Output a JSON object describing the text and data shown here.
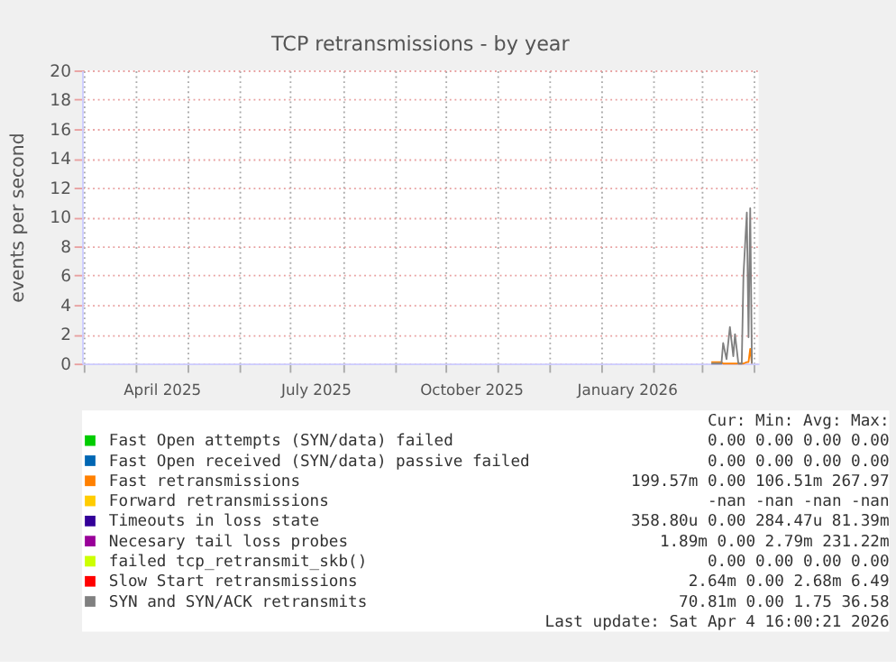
{
  "chart_data": {
    "type": "line",
    "title": "TCP retransmissions - by year",
    "ylabel": "events per second",
    "x": [
      "2026-03-07",
      "2026-03-08",
      "2026-03-13",
      "2026-03-14",
      "2026-03-16",
      "2026-03-18",
      "2026-03-20",
      "2026-03-21",
      "2026-03-23",
      "2026-03-25",
      "2026-03-26",
      "2026-03-28",
      "2026-03-29",
      "2026-03-30",
      "2026-03-31"
    ],
    "series": [
      {
        "name": "Fast Open attempts (SYN/data) failed",
        "color": "#00cc00",
        "values": [
          null,
          null,
          null,
          null,
          null,
          null,
          null,
          null,
          null,
          null,
          null,
          null,
          null,
          null,
          null
        ]
      },
      {
        "name": "Fast Open received (SYN/data) passive failed",
        "color": "#0066b3",
        "values": [
          null,
          null,
          null,
          null,
          null,
          null,
          null,
          null,
          null,
          null,
          null,
          null,
          null,
          null,
          null
        ]
      },
      {
        "name": "Fast retransmissions",
        "color": "#ff8000",
        "values": [
          0.1,
          0.1,
          0.1,
          0,
          0,
          0,
          0,
          0,
          0,
          0,
          0,
          0.1,
          0.1,
          1.0,
          0
        ]
      },
      {
        "name": "Forward retransmissions",
        "color": "#ffcc00",
        "values": [
          null,
          null,
          null,
          null,
          null,
          null,
          null,
          null,
          null,
          null,
          null,
          null,
          null,
          null,
          null
        ]
      },
      {
        "name": "Timeouts in loss state",
        "color": "#330099",
        "values": [
          null,
          null,
          null,
          null,
          null,
          null,
          null,
          null,
          null,
          null,
          null,
          null,
          null,
          null,
          null
        ]
      },
      {
        "name": "Necesary tail loss probes",
        "color": "#990099",
        "values": [
          null,
          null,
          null,
          null,
          null,
          null,
          null,
          null,
          null,
          null,
          null,
          null,
          null,
          null,
          null
        ]
      },
      {
        "name": "failed tcp_retransmit_skb()",
        "color": "#ccff00",
        "values": [
          null,
          null,
          null,
          null,
          null,
          null,
          null,
          null,
          null,
          null,
          null,
          null,
          null,
          null,
          null
        ]
      },
      {
        "name": "Slow Start retransmissions",
        "color": "#ff0000",
        "values": [
          null,
          null,
          null,
          null,
          null,
          null,
          null,
          null,
          null,
          null,
          null,
          null,
          null,
          null,
          null
        ]
      },
      {
        "name": "SYN and SYN/ACK retransmits",
        "color": "#808080",
        "values": [
          0,
          0,
          0,
          1.4,
          0.3,
          2.5,
          0.5,
          2.0,
          0,
          0,
          6,
          10.3,
          1.8,
          10.6,
          0
        ]
      }
    ],
    "xlim": [
      "2025-02-28",
      "2026-04-04"
    ],
    "xticks": [
      {
        "value": "2025-03-01",
        "label": null
      },
      {
        "value": "2025-04-01",
        "label": null
      },
      {
        "value": "2025-04-16",
        "label": "April 2025"
      },
      {
        "value": "2025-05-01",
        "label": null
      },
      {
        "value": "2025-06-01",
        "label": null
      },
      {
        "value": "2025-07-01",
        "label": null
      },
      {
        "value": "2025-07-16",
        "label": "July 2025"
      },
      {
        "value": "2025-08-01",
        "label": null
      },
      {
        "value": "2025-09-01",
        "label": null
      },
      {
        "value": "2025-10-01",
        "label": null
      },
      {
        "value": "2025-10-16",
        "label": "October 2025"
      },
      {
        "value": "2025-11-01",
        "label": null
      },
      {
        "value": "2025-12-01",
        "label": null
      },
      {
        "value": "2026-01-01",
        "label": null
      },
      {
        "value": "2026-01-16",
        "label": "January 2026"
      },
      {
        "value": "2026-02-01",
        "label": null
      },
      {
        "value": "2026-03-01",
        "label": null
      },
      {
        "value": "2026-04-01",
        "label": null
      }
    ],
    "ylim": [
      0,
      20
    ],
    "yticks": [
      0,
      2,
      4,
      6,
      8,
      10,
      12,
      14,
      16,
      18,
      20
    ],
    "grid": true,
    "legend": "bottom",
    "line_style": "solid",
    "marker": "none",
    "annotations": [
      "Cur:    Min:    Avg:    Max:",
      "0.00    0.00    0.00    0.00",
      "0.00    0.00    0.00    0.00",
      "199.57m    0.00 106.51m 267.97",
      "-nan    -nan    -nan    -nan",
      "358.80u    0.00 284.47u  81.39m",
      "1.89m    0.00    2.79m 231.22m",
      "0.00    0.00    0.00    0.00",
      "2.64m    0.00    2.68m    6.49",
      "70.81m    0.00    1.75   36.58",
      "Last update: Sat Apr  4 16:00:21 2026"
    ]
  }
}
